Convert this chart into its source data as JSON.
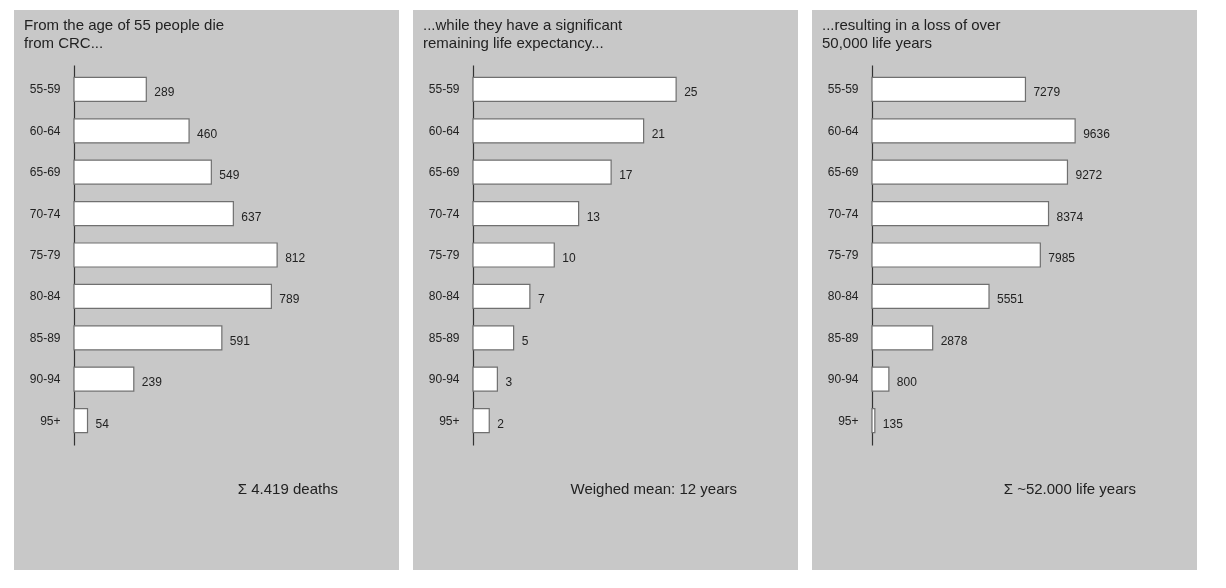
{
  "chart_data": [
    {
      "type": "bar",
      "orientation": "horizontal",
      "title": "From the age of 55 people die\nfrom CRC...",
      "categories": [
        "55-59",
        "60-64",
        "65-69",
        "70-74",
        "75-79",
        "80-84",
        "85-89",
        "90-94",
        "95+"
      ],
      "values": [
        289,
        460,
        549,
        637,
        812,
        789,
        591,
        239,
        54
      ],
      "color": "#ffffff",
      "data_labels": true,
      "tick_labels": "y",
      "annotations": [
        "Σ 4.419 deaths"
      ]
    },
    {
      "type": "bar",
      "orientation": "horizontal",
      "title": "...while they have a significant\nremaining life expectancy...",
      "categories": [
        "55-59",
        "60-64",
        "65-69",
        "70-74",
        "75-79",
        "80-84",
        "85-89",
        "90-94",
        "95+"
      ],
      "values": [
        25,
        21,
        17,
        13,
        10,
        7,
        5,
        3,
        2
      ],
      "color": "#ffffff",
      "data_labels": true,
      "tick_labels": "y",
      "annotations": [
        "Weighed mean: 12 years"
      ]
    },
    {
      "type": "bar",
      "orientation": "horizontal",
      "title": "...resulting in a loss of over\n50,000 life years",
      "categories": [
        "55-59",
        "60-64",
        "65-69",
        "70-74",
        "75-79",
        "80-84",
        "85-89",
        "90-94",
        "95+"
      ],
      "values": [
        7279,
        9636,
        9272,
        8374,
        7985,
        5551,
        2878,
        800,
        135
      ],
      "color": "#ffffff",
      "data_labels": true,
      "tick_labels": "y",
      "annotations": [
        "Σ ~52.000 life years"
      ]
    }
  ]
}
